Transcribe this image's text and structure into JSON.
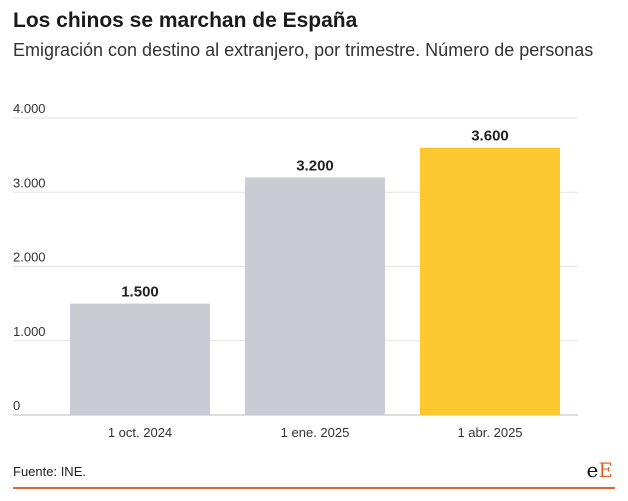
{
  "header": {
    "title": "Los chinos se marchan de España",
    "subtitle": "Emigración con destino al extranjero, por trimestre. Número de personas"
  },
  "chart_data": {
    "type": "bar",
    "categories": [
      "1 oct. 2024",
      "1 ene. 2025",
      "1 abr. 2025"
    ],
    "values": [
      1500,
      3200,
      3600
    ],
    "value_labels": [
      "1.500",
      "3.200",
      "3.600"
    ],
    "ylim": [
      0,
      4000
    ],
    "yticks": [
      0,
      1000,
      2000,
      3000,
      4000
    ],
    "ytick_labels": [
      "0",
      "1.000",
      "2.000",
      "3.000",
      "4.000"
    ],
    "grid": true,
    "bar_colors": [
      "#c9cdd3",
      "#c9cdd3",
      "#fbc92f"
    ]
  },
  "footer": {
    "source": "Fuente: INE.",
    "logo_text": [
      "e",
      "E"
    ],
    "accent_color": "#e0632a"
  }
}
